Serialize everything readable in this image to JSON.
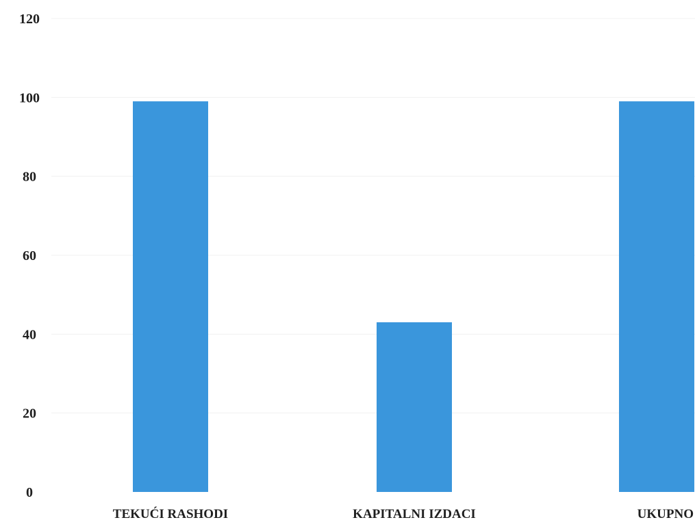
{
  "chart_data": {
    "type": "bar",
    "categories": [
      "TEKUĆI RASHODI",
      "KAPITALNI IZDACI",
      "UKUPNO"
    ],
    "values": [
      99,
      43,
      99
    ],
    "ylim": [
      0,
      120
    ],
    "yticks": [
      0,
      20,
      40,
      60,
      80,
      100,
      120
    ],
    "grid": true,
    "legend": "none",
    "colors": {
      "bar": "#3a96dc",
      "text": "#1f1f1f",
      "grid": "#f1f1f1"
    }
  }
}
